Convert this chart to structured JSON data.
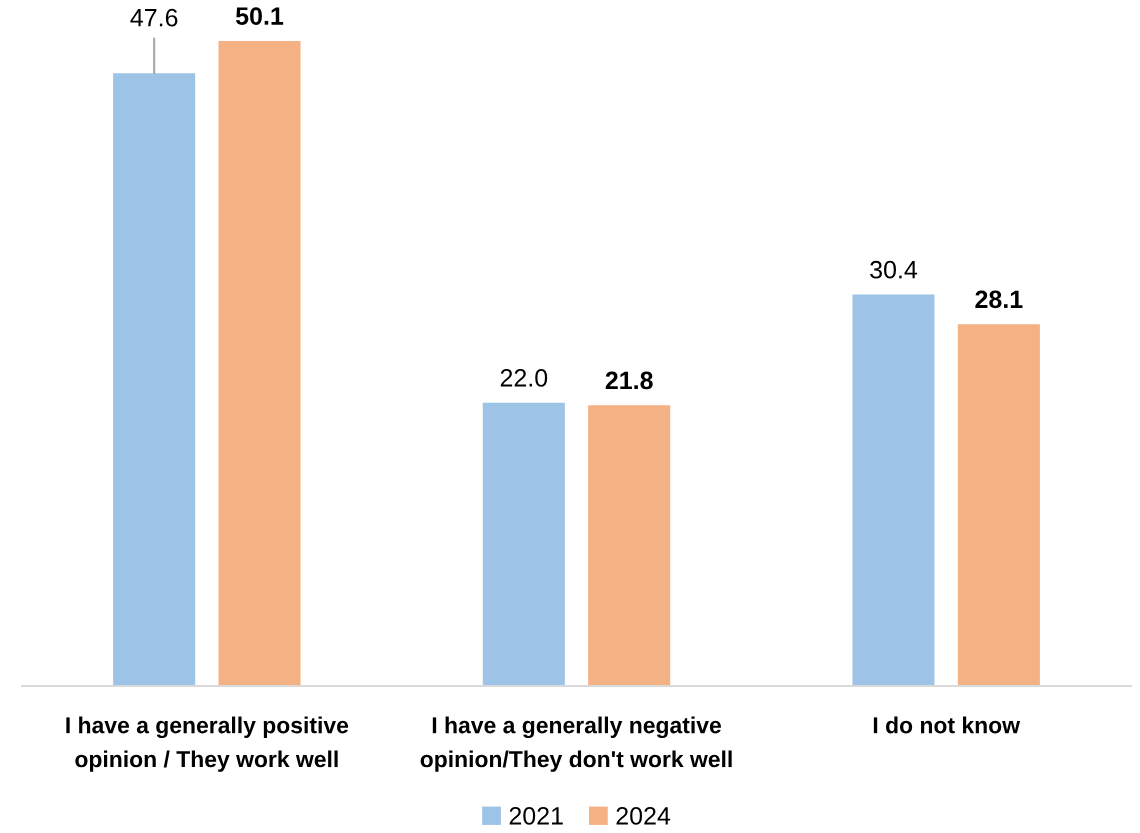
{
  "chart_data": {
    "type": "bar",
    "categories": [
      "I have a generally positive\nopinion / They work well",
      "I have a generally negative\nopinion/They don't work well",
      "I do not know"
    ],
    "series": [
      {
        "name": "2021",
        "color": "#9dc3e6",
        "values": [
          47.6,
          22.0,
          30.4
        ],
        "value_labels": [
          "47.6",
          "22.0",
          "30.4"
        ]
      },
      {
        "name": "2024",
        "color": "#f4b183",
        "values": [
          50.1,
          21.8,
          28.1
        ],
        "value_labels": [
          "50.1",
          "21.8",
          "28.1"
        ]
      }
    ],
    "grid": false,
    "legend": "bottom"
  }
}
